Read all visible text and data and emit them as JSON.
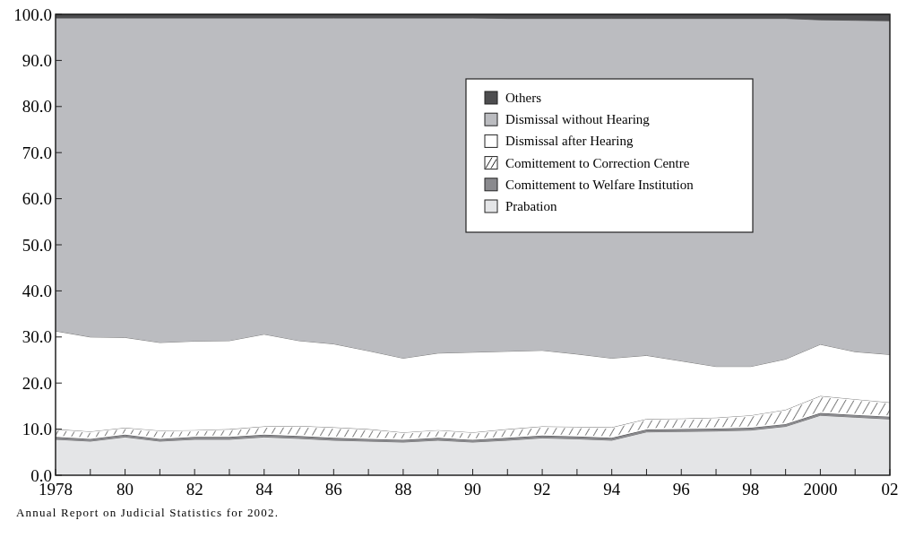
{
  "chart_data": {
    "type": "area",
    "stacked": true,
    "x": [
      1978,
      1979,
      1980,
      1981,
      1982,
      1983,
      1984,
      1985,
      1986,
      1987,
      1988,
      1989,
      1990,
      1991,
      1992,
      1993,
      1994,
      1995,
      1996,
      1997,
      1998,
      1999,
      2000,
      2001,
      2002
    ],
    "xlim": [
      1978,
      2002
    ],
    "xticks": [
      {
        "value": 1978,
        "label": "1978"
      },
      {
        "value": 1979,
        "label": null
      },
      {
        "value": 1980,
        "label": "80"
      },
      {
        "value": 1981,
        "label": null
      },
      {
        "value": 1982,
        "label": "82"
      },
      {
        "value": 1983,
        "label": null
      },
      {
        "value": 1984,
        "label": "84"
      },
      {
        "value": 1985,
        "label": null
      },
      {
        "value": 1986,
        "label": "86"
      },
      {
        "value": 1987,
        "label": null
      },
      {
        "value": 1988,
        "label": "88"
      },
      {
        "value": 1989,
        "label": null
      },
      {
        "value": 1990,
        "label": "90"
      },
      {
        "value": 1991,
        "label": null
      },
      {
        "value": 1992,
        "label": "92"
      },
      {
        "value": 1993,
        "label": null
      },
      {
        "value": 1994,
        "label": "94"
      },
      {
        "value": 1995,
        "label": null
      },
      {
        "value": 1996,
        "label": "96"
      },
      {
        "value": 1997,
        "label": null
      },
      {
        "value": 1998,
        "label": "98"
      },
      {
        "value": 1999,
        "label": null
      },
      {
        "value": 2000,
        "label": "2000"
      },
      {
        "value": 2001,
        "label": null
      },
      {
        "value": 2002,
        "label": "02"
      }
    ],
    "ylim": [
      0,
      100
    ],
    "yticks": [
      {
        "value": 0,
        "label": "0.0"
      },
      {
        "value": 10,
        "label": "10.0"
      },
      {
        "value": 20,
        "label": "20.0"
      },
      {
        "value": 30,
        "label": "30.0"
      },
      {
        "value": 40,
        "label": "40.0"
      },
      {
        "value": 50,
        "label": "50.0"
      },
      {
        "value": 60,
        "label": "60.0"
      },
      {
        "value": 70,
        "label": "70.0"
      },
      {
        "value": 80,
        "label": "80.0"
      },
      {
        "value": 90,
        "label": "90.0"
      },
      {
        "value": 100,
        "label": "100.0"
      }
    ],
    "grid": false,
    "legend": "top right",
    "annotations": [
      "Annual Report on Judicial Statistics for 2002."
    ],
    "series": [
      {
        "name": "Prabation",
        "color": "#e4e5e7",
        "values": [
          7.8,
          7.4,
          8.3,
          7.4,
          7.8,
          7.8,
          8.3,
          8.0,
          7.6,
          7.4,
          7.2,
          7.6,
          7.2,
          7.6,
          8.1,
          7.9,
          7.6,
          9.4,
          9.5,
          9.6,
          9.8,
          10.6,
          13.0,
          12.6,
          12.2
        ]
      },
      {
        "name": "Comittement to Welfare Institution",
        "color": "#8a8a8e",
        "values": [
          0.5,
          0.5,
          0.5,
          0.5,
          0.5,
          0.5,
          0.5,
          0.5,
          0.5,
          0.5,
          0.5,
          0.5,
          0.5,
          0.5,
          0.5,
          0.5,
          0.5,
          0.5,
          0.5,
          0.5,
          0.5,
          0.5,
          0.5,
          0.5,
          0.5
        ]
      },
      {
        "name": "Comittement to Correction Centre",
        "color": "#ffffff",
        "values": [
          1.7,
          1.6,
          1.5,
          1.8,
          1.5,
          1.7,
          1.8,
          2.2,
          2.3,
          2.1,
          1.6,
          1.7,
          1.6,
          1.9,
          2.0,
          2.1,
          2.3,
          2.3,
          2.3,
          2.4,
          2.7,
          3.1,
          3.7,
          3.4,
          3.1
        ]
      },
      {
        "name": "Dismissal after Hearing",
        "color": "#ffffff",
        "values": [
          21.3,
          20.5,
          19.6,
          19.1,
          19.3,
          19.2,
          20.0,
          18.5,
          18.1,
          17.0,
          16.1,
          16.7,
          17.4,
          16.9,
          16.5,
          15.8,
          15.0,
          13.8,
          12.5,
          11.1,
          10.6,
          11.0,
          11.2,
          10.3,
          10.4
        ]
      },
      {
        "name": "Dismissal without Hearing",
        "color": "#bbbcc0",
        "values": [
          67.9,
          69.2,
          69.3,
          70.4,
          70.1,
          70.0,
          68.6,
          70.0,
          70.7,
          72.2,
          73.8,
          72.7,
          72.5,
          72.2,
          72.0,
          72.8,
          73.7,
          73.1,
          74.3,
          75.5,
          75.5,
          73.9,
          70.4,
          71.9,
          72.4
        ]
      },
      {
        "name": "Others",
        "color": "#4d4d4f",
        "values": [
          0.8,
          0.8,
          0.8,
          0.8,
          0.8,
          0.8,
          0.8,
          0.8,
          0.8,
          0.8,
          0.8,
          0.8,
          0.8,
          0.9,
          0.9,
          0.9,
          0.9,
          0.9,
          0.9,
          0.9,
          0.9,
          0.9,
          1.2,
          1.3,
          1.4
        ]
      }
    ]
  }
}
